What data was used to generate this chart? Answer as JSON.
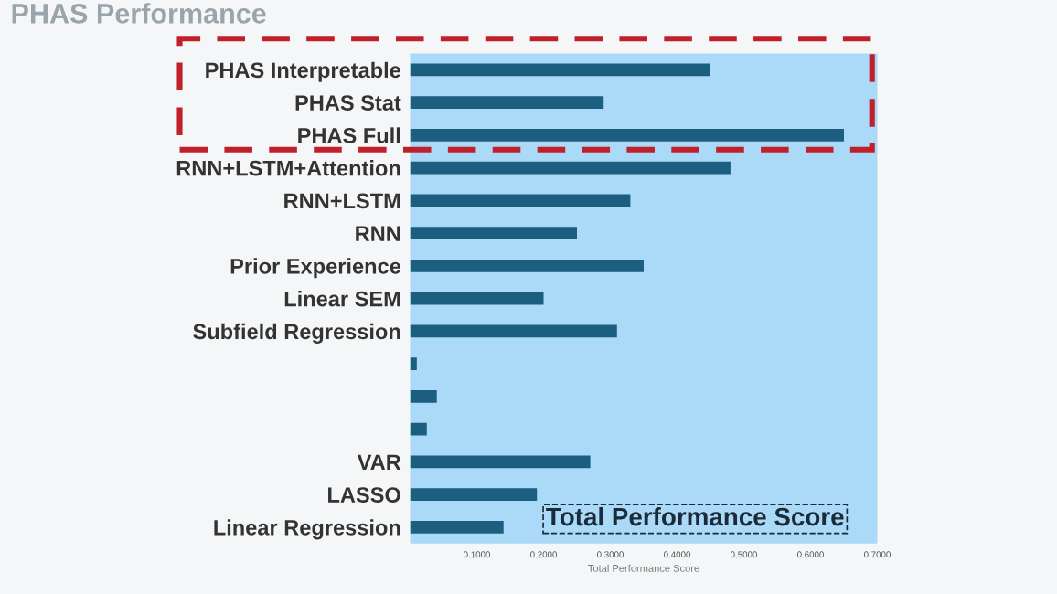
{
  "chart_data": {
    "type": "bar",
    "orientation": "horizontal",
    "title": "PHAS Performance",
    "xlabel": "Total Performance Score",
    "categories": [
      "PHAS Interpretable",
      "PHAS Stat",
      "PHAS Full",
      "RNN+LSTM+Attention",
      "RNN+LSTM",
      "RNN",
      "Prior Experience",
      "Linear SEM",
      "Subfield Regression",
      null,
      null,
      null,
      "VAR",
      "LASSO",
      "Linear Regression"
    ],
    "values": [
      0.45,
      0.29,
      0.65,
      0.48,
      0.33,
      0.25,
      0.35,
      0.2,
      0.31,
      0.01,
      0.04,
      0.025,
      0.27,
      0.19,
      0.14
    ],
    "color": "#1b5e80",
    "xlim": [
      0,
      0.7
    ],
    "xticks": [
      {
        "value": 0.1,
        "label": "0.1000"
      },
      {
        "value": 0.2,
        "label": "0.2000"
      },
      {
        "value": 0.3,
        "label": "0.3000"
      },
      {
        "value": 0.4,
        "label": "0.4000"
      },
      {
        "value": 0.5,
        "label": "0.5000"
      },
      {
        "value": 0.6,
        "label": "0.6000"
      },
      {
        "value": 0.7,
        "label": "0.7000"
      }
    ],
    "annotations": [
      "Total Performance Score"
    ],
    "grid": false,
    "legend": false
  }
}
